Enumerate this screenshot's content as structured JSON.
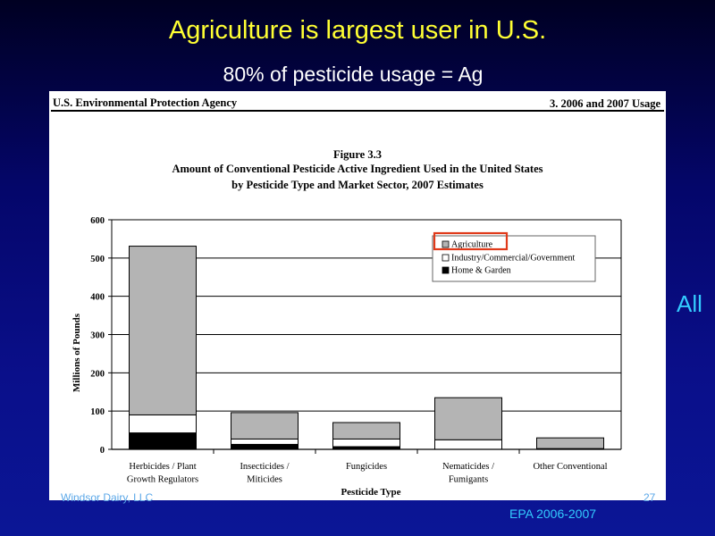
{
  "slide": {
    "title": "Agriculture is largest user in U.S.",
    "subtitle": "80% of pesticide usage = Ag",
    "side_note": "All",
    "footer_left": "Windsor Dairy, LLC",
    "footer_right": "27",
    "source": "EPA 2006-2007"
  },
  "document": {
    "header_left": "U.S. Environmental Protection Agency",
    "header_right": "3. 2006 and 2007 Usage",
    "figure_label": "Figure 3.3",
    "caption_line1": "Amount of Conventional Pesticide Active Ingredient Used in the United States",
    "caption_line2": "by Pesticide Type and Market Sector, 2007 Estimates"
  },
  "colors": {
    "agriculture": "#b4b4b4",
    "industry": "#ffffff",
    "home_garden": "#000000",
    "highlight_box": "#e03a1a",
    "title_yellow": "#ffff33",
    "accent_cyan": "#33ccff"
  },
  "chart_data": {
    "type": "bar",
    "stacked": true,
    "xlabel": "Pesticide Type",
    "ylabel": "Millions of Pounds",
    "ylim": [
      0,
      600
    ],
    "yticks": [
      0,
      100,
      200,
      300,
      400,
      500,
      600
    ],
    "grid": true,
    "legend_position": "top-right",
    "highlighted_legend_entry": "Agriculture",
    "categories": [
      [
        "Herbicides / Plant",
        "Growth Regulators"
      ],
      [
        "Insecticides /",
        "Miticides"
      ],
      [
        "Fungicides"
      ],
      [
        "Nematicides /",
        "Fumigants"
      ],
      [
        "Other Conventional"
      ]
    ],
    "series": [
      {
        "name": "Home & Garden",
        "values": [
          43,
          13,
          7,
          0,
          0
        ]
      },
      {
        "name": "Industry/Commercial/Government",
        "values": [
          47,
          14,
          20,
          25,
          2
        ]
      },
      {
        "name": "Agriculture",
        "values": [
          441,
          69,
          43,
          110,
          28
        ]
      }
    ],
    "legend_order": [
      "Agriculture",
      "Industry/Commercial/Government",
      "Home & Garden"
    ]
  }
}
